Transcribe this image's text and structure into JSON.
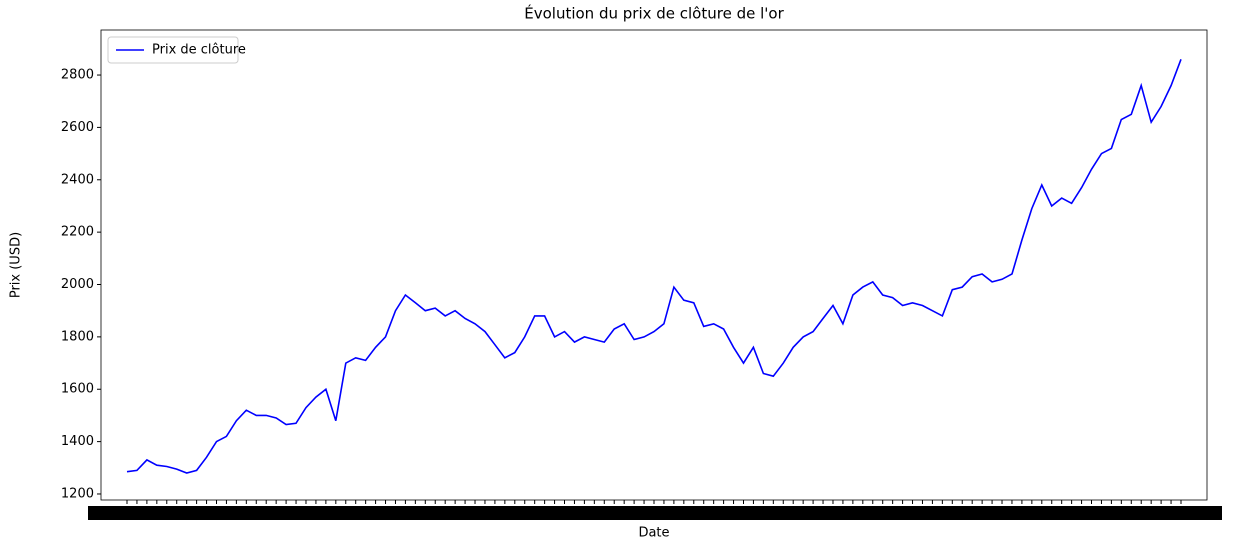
{
  "chart_data": {
    "type": "line",
    "title": "Évolution du prix de clôture de l'or",
    "xlabel": "Date",
    "ylabel": "Prix (USD)",
    "categories": [
      null,
      null,
      null,
      null,
      null,
      null,
      null,
      null,
      null,
      null,
      null,
      null,
      null,
      null,
      null,
      null,
      null,
      null,
      null,
      null,
      null,
      null,
      null,
      null,
      null,
      null,
      null,
      null,
      null,
      null,
      null,
      null,
      null,
      null,
      null,
      null,
      null,
      null,
      null,
      null,
      null,
      null,
      null,
      null,
      null,
      null,
      null,
      null,
      null,
      null,
      null,
      null,
      null,
      null,
      null,
      null,
      null,
      null,
      null,
      null,
      null,
      null,
      null,
      null,
      null,
      null,
      null,
      null,
      null,
      null,
      null,
      null,
      null,
      null,
      null,
      null,
      null,
      null,
      null,
      null,
      null,
      null,
      null,
      null,
      null,
      null,
      null,
      null,
      null,
      null,
      null,
      null,
      null,
      null,
      null,
      null,
      null,
      null,
      null,
      null,
      null,
      null,
      null,
      null,
      null,
      null,
      null
    ],
    "series": [
      {
        "name": "Prix de clôture",
        "color": "#0000ff",
        "values": [
          1285,
          1290,
          1330,
          1310,
          1305,
          1295,
          1280,
          1290,
          1340,
          1400,
          1420,
          1480,
          1520,
          1500,
          1500,
          1490,
          1465,
          1470,
          1530,
          1570,
          1600,
          1480,
          1700,
          1720,
          1710,
          1760,
          1800,
          1900,
          1960,
          1930,
          1900,
          1910,
          1880,
          1900,
          1870,
          1850,
          1820,
          1770,
          1720,
          1740,
          1800,
          1880,
          1880,
          1800,
          1820,
          1780,
          1800,
          1790,
          1780,
          1830,
          1850,
          1790,
          1800,
          1820,
          1850,
          1990,
          1940,
          1930,
          1840,
          1850,
          1830,
          1760,
          1700,
          1760,
          1660,
          1650,
          1700,
          1760,
          1800,
          1820,
          1870,
          1920,
          1850,
          1960,
          1990,
          2010,
          1960,
          1950,
          1920,
          1930,
          1920,
          1900,
          1880,
          1980,
          1990,
          2030,
          2040,
          2010,
          2020,
          2040,
          2170,
          2290,
          2380,
          2300,
          2330,
          2310,
          2370,
          2440,
          2500,
          2520,
          2630,
          2650,
          2760,
          2620,
          2680,
          2760,
          2860
        ]
      }
    ],
    "ylim": [
      1177,
      2972
    ],
    "yticks": [
      1200,
      1400,
      1600,
      1800,
      2000,
      2200,
      2400,
      2600,
      2800
    ],
    "legend": "upper left"
  }
}
